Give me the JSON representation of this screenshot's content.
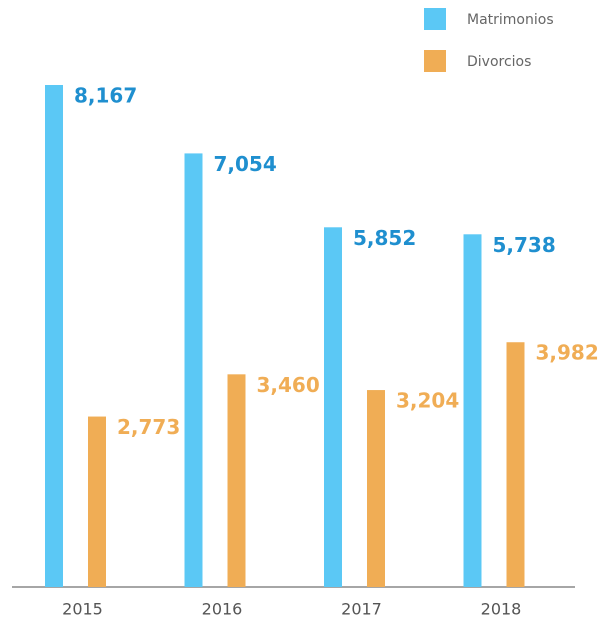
{
  "chart_data": {
    "type": "bar",
    "categories": [
      "2015",
      "2016",
      "2017",
      "2018"
    ],
    "series": [
      {
        "name": "Matrimonios",
        "color": "#5bc8f5",
        "label_color": "#1f8fcf",
        "values": [
          8167,
          7054,
          5852,
          5738
        ],
        "value_labels": [
          "8,167",
          "7,054",
          "5,852",
          "5,738"
        ]
      },
      {
        "name": "Divorcios",
        "color": "#f0ad55",
        "label_color": "#f0ad55",
        "values": [
          2773,
          3460,
          3204,
          3982
        ],
        "value_labels": [
          "2,773",
          "3,460",
          "3,204",
          "3,982"
        ]
      }
    ],
    "legend": "top-right"
  }
}
